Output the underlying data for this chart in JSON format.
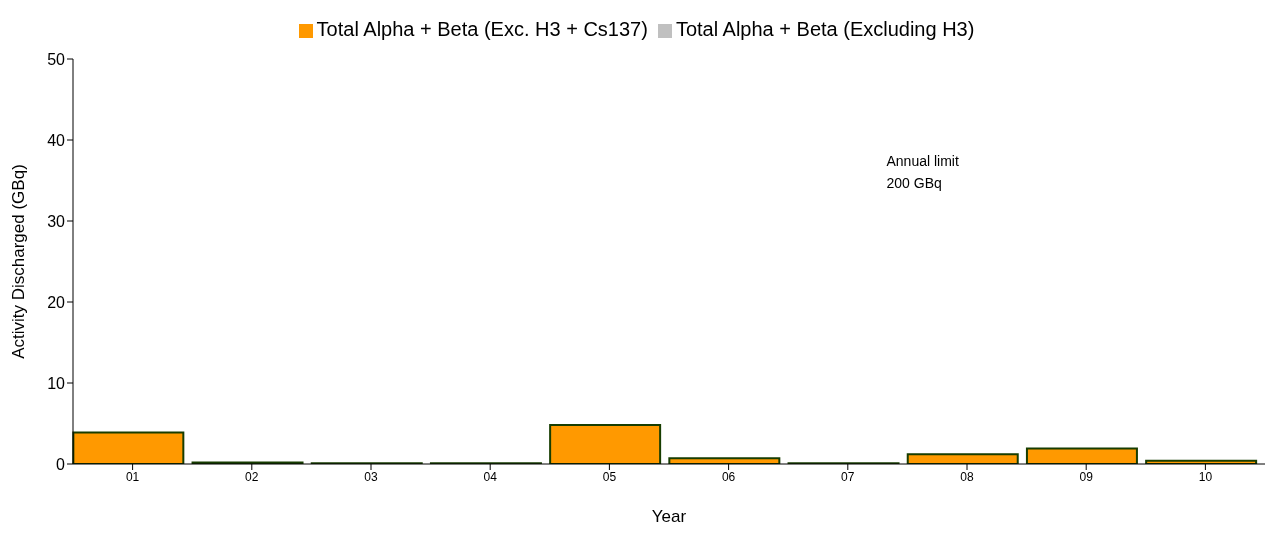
{
  "chart_data": {
    "type": "bar",
    "xlabel": "Year",
    "ylabel": "Activity Discharged (GBq)",
    "categories": [
      "01",
      "02",
      "03",
      "04",
      "05",
      "06",
      "07",
      "08",
      "09",
      "10"
    ],
    "series": [
      {
        "name": "Total Alpha + Beta (Excluding H3)",
        "color": "#c0c0c0",
        "values": [
          null,
          null,
          null,
          null,
          null,
          null,
          null,
          null,
          null,
          null
        ]
      },
      {
        "name": "Total Alpha + Beta (Exc. H3 + Cs137)",
        "color": "#ff9900",
        "values": [
          3.9,
          0.2,
          0.1,
          0.1,
          4.8,
          0.7,
          0.1,
          1.2,
          1.9,
          0.4
        ]
      }
    ],
    "ylim": [
      0,
      50
    ],
    "yticks": [
      0,
      10,
      20,
      30,
      40,
      50
    ],
    "legend": "top",
    "annotations": [
      "Annual limit\n200 GBq"
    ]
  }
}
